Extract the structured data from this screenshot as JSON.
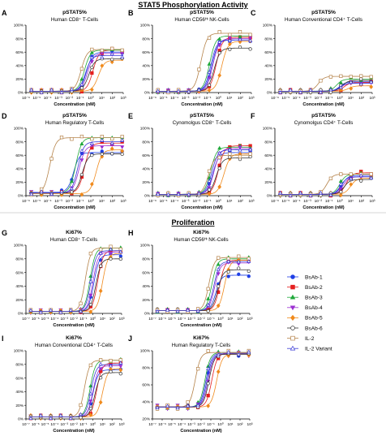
{
  "sections": {
    "stat5": "STAT5 Phosphorylation Activity",
    "prolif": "Proliferation"
  },
  "legend": [
    {
      "name": "BsAb-1",
      "color": "#1f3fe6",
      "marker": "circle",
      "filled": true
    },
    {
      "name": "BsAb-2",
      "color": "#e51e1e",
      "marker": "square",
      "filled": true
    },
    {
      "name": "BsAb-3",
      "color": "#1fa83a",
      "marker": "triangle",
      "filled": true
    },
    {
      "name": "BsAb-4",
      "color": "#9b2fd1",
      "marker": "triangle-down",
      "filled": true
    },
    {
      "name": "BsAb-5",
      "color": "#f08a1c",
      "marker": "diamond",
      "filled": true
    },
    {
      "name": "BsAb-6",
      "color": "#333333",
      "marker": "circle",
      "filled": false
    },
    {
      "name": "IL-2",
      "color": "#b5834a",
      "marker": "square",
      "filled": false
    },
    {
      "name": "IL-2 Variant",
      "color": "#3a3ad6",
      "marker": "triangle",
      "filled": false
    }
  ],
  "chart_data": [
    {
      "type": "scatter",
      "letter": "A",
      "title": "pSTAT5%",
      "subtitle": "Human CD8⁺ T-Cells",
      "xlabel": "Concentration (nM)",
      "xscale": "log",
      "xlim": [
        -6,
        3
      ],
      "ylim": [
        0,
        100
      ],
      "xticks": [
        "10⁻⁶",
        "10⁻⁵",
        "10⁻⁴",
        "10⁻³",
        "10⁻²",
        "10⁻¹",
        "10⁰",
        "10¹",
        "10²",
        "10³"
      ],
      "yticks": [
        "0%",
        "20%",
        "40%",
        "60%",
        "80%",
        "100%"
      ],
      "series": [
        {
          "name": "BsAb-1",
          "bottom": 2,
          "top": 60,
          "ec50_log10": -0.4
        },
        {
          "name": "BsAb-2",
          "bottom": 2,
          "top": 63,
          "ec50_log10": 0.2
        },
        {
          "name": "BsAb-3",
          "bottom": 2,
          "top": 63,
          "ec50_log10": -0.6
        },
        {
          "name": "BsAb-4",
          "bottom": 2,
          "top": 58,
          "ec50_log10": -0.3
        },
        {
          "name": "BsAb-5",
          "bottom": 2,
          "top": 48,
          "ec50_log10": 0.7
        },
        {
          "name": "BsAb-6",
          "bottom": 2,
          "top": 50,
          "ec50_log10": -0.2
        },
        {
          "name": "IL-2",
          "bottom": 2,
          "top": 64,
          "ec50_log10": -0.9
        },
        {
          "name": "IL-2 Variant",
          "bottom": 2,
          "top": 55,
          "ec50_log10": -0.5
        }
      ]
    },
    {
      "type": "scatter",
      "letter": "B",
      "title": "pSTAT5%",
      "subtitle": "Human CD56ᴴᶦ NK-Cells",
      "xlabel": "Concentration (nM)",
      "xscale": "log",
      "xlim": [
        -6,
        3
      ],
      "ylim": [
        0,
        100
      ],
      "xticks": [
        "10⁻⁶",
        "10⁻⁵",
        "10⁻⁴",
        "10⁻³",
        "10⁻²",
        "10⁻¹",
        "10⁰",
        "10¹",
        "10²",
        "10³"
      ],
      "yticks": [
        "0%",
        "20%",
        "40%",
        "60%",
        "80%",
        "100%"
      ],
      "series": [
        {
          "name": "BsAb-1",
          "bottom": 2,
          "top": 78,
          "ec50_log10": -0.6
        },
        {
          "name": "BsAb-2",
          "bottom": 2,
          "top": 82,
          "ec50_log10": -0.2
        },
        {
          "name": "BsAb-3",
          "bottom": 2,
          "top": 84,
          "ec50_log10": -0.8
        },
        {
          "name": "BsAb-4",
          "bottom": 2,
          "top": 80,
          "ec50_log10": -0.5
        },
        {
          "name": "BsAb-5",
          "bottom": 2,
          "top": 76,
          "ec50_log10": 0.3
        },
        {
          "name": "BsAb-6",
          "bottom": 2,
          "top": 66,
          "ec50_log10": -0.4
        },
        {
          "name": "IL-2",
          "bottom": 2,
          "top": 88,
          "ec50_log10": -1.6
        },
        {
          "name": "IL-2 Variant",
          "bottom": 2,
          "top": 78,
          "ec50_log10": -0.7
        }
      ]
    },
    {
      "type": "scatter",
      "letter": "C",
      "title": "pSTAT5%",
      "subtitle": "Human Conventional CD4⁺ T-Cells",
      "xlabel": "Concentration (nM)",
      "xscale": "log",
      "xlim": [
        -6,
        3
      ],
      "ylim": [
        0,
        100
      ],
      "xticks": [
        "10⁻⁶",
        "10⁻⁵",
        "10⁻⁴",
        "10⁻³",
        "10⁻²",
        "10⁻¹",
        "10⁰",
        "10¹",
        "10²",
        "10³"
      ],
      "yticks": [
        "0%",
        "20%",
        "40%",
        "60%",
        "80%",
        "100%"
      ],
      "series": [
        {
          "name": "BsAb-1",
          "bottom": 2,
          "top": 16,
          "ec50_log10": 0.0
        },
        {
          "name": "BsAb-2",
          "bottom": 2,
          "top": 15,
          "ec50_log10": 0.4
        },
        {
          "name": "BsAb-3",
          "bottom": 2,
          "top": 20,
          "ec50_log10": -0.3
        },
        {
          "name": "BsAb-4",
          "bottom": 2,
          "top": 14,
          "ec50_log10": 0.1
        },
        {
          "name": "BsAb-5",
          "bottom": 2,
          "top": 10,
          "ec50_log10": 0.8
        },
        {
          "name": "BsAb-6",
          "bottom": 2,
          "top": 18,
          "ec50_log10": 0.2
        },
        {
          "name": "IL-2",
          "bottom": 2,
          "top": 24,
          "ec50_log10": -2.0
        },
        {
          "name": "IL-2 Variant",
          "bottom": 2,
          "top": 14,
          "ec50_log10": 0.0
        }
      ]
    },
    {
      "type": "scatter",
      "letter": "D",
      "title": "pSTAT5%",
      "subtitle": "Human Regulatory T-Cells",
      "xlabel": "Concentration (nM)",
      "xscale": "log",
      "xlim": [
        -6,
        3
      ],
      "ylim": [
        0,
        100
      ],
      "xticks": [
        "10⁻⁶",
        "10⁻⁵",
        "10⁻⁴",
        "10⁻³",
        "10⁻²",
        "10⁻¹",
        "10⁰",
        "10¹",
        "10²",
        "10³"
      ],
      "yticks": [
        "0%",
        "20%",
        "40%",
        "60%",
        "80%",
        "100%"
      ],
      "series": [
        {
          "name": "BsAb-1",
          "bottom": 5,
          "top": 64,
          "ec50_log10": -1.6
        },
        {
          "name": "BsAb-2",
          "bottom": 4,
          "top": 78,
          "ec50_log10": -0.6
        },
        {
          "name": "BsAb-3",
          "bottom": 4,
          "top": 86,
          "ec50_log10": -1.4
        },
        {
          "name": "BsAb-4",
          "bottom": 4,
          "top": 74,
          "ec50_log10": -1.1
        },
        {
          "name": "BsAb-5",
          "bottom": 3,
          "top": 68,
          "ec50_log10": 0.5
        },
        {
          "name": "BsAb-6",
          "bottom": 4,
          "top": 62,
          "ec50_log10": -0.8
        },
        {
          "name": "IL-2",
          "bottom": 3,
          "top": 86,
          "ec50_log10": -3.8
        },
        {
          "name": "IL-2 Variant",
          "bottom": 4,
          "top": 80,
          "ec50_log10": -1.2
        }
      ]
    },
    {
      "type": "scatter",
      "letter": "E",
      "title": "pSTAT5%",
      "subtitle": "Cynomolgus CD8⁺ T-Cells",
      "xlabel": "Concentration (nM)",
      "xscale": "log",
      "xlim": [
        -6,
        3
      ],
      "ylim": [
        0,
        100
      ],
      "xticks": [
        "10⁻⁶",
        "10⁻⁵",
        "10⁻⁴",
        "10⁻³",
        "10⁻²",
        "10⁻¹",
        "10⁰",
        "10¹",
        "10²",
        "10³"
      ],
      "yticks": [
        "0%",
        "20%",
        "40%",
        "60%",
        "80%",
        "100%"
      ],
      "series": [
        {
          "name": "BsAb-1",
          "bottom": 2,
          "top": 64,
          "ec50_log10": -0.5
        },
        {
          "name": "BsAb-2",
          "bottom": 2,
          "top": 74,
          "ec50_log10": 0.0
        },
        {
          "name": "BsAb-3",
          "bottom": 2,
          "top": 72,
          "ec50_log10": -0.7
        },
        {
          "name": "BsAb-4",
          "bottom": 2,
          "top": 70,
          "ec50_log10": -0.4
        },
        {
          "name": "BsAb-5",
          "bottom": 2,
          "top": 62,
          "ec50_log10": 0.5
        },
        {
          "name": "BsAb-6",
          "bottom": 2,
          "top": 56,
          "ec50_log10": -0.2
        },
        {
          "name": "IL-2",
          "bottom": 2,
          "top": 60,
          "ec50_log10": -0.9
        },
        {
          "name": "IL-2 Variant",
          "bottom": 2,
          "top": 68,
          "ec50_log10": -0.6
        }
      ]
    },
    {
      "type": "scatter",
      "letter": "F",
      "title": "pSTAT5%",
      "subtitle": "Cynomolgus CD4⁺ T-Cells",
      "xlabel": "Concentration (nM)",
      "xscale": "log",
      "xlim": [
        -6,
        3
      ],
      "ylim": [
        0,
        100
      ],
      "xticks": [
        "10⁻⁶",
        "10⁻⁵",
        "10⁻⁴",
        "10⁻³",
        "10⁻²",
        "10⁻¹",
        "10⁰",
        "10¹",
        "10²",
        "10³"
      ],
      "yticks": [
        "0%",
        "20%",
        "40%",
        "60%",
        "80%",
        "100%"
      ],
      "series": [
        {
          "name": "BsAb-1",
          "bottom": 2,
          "top": 30,
          "ec50_log10": 0.2
        },
        {
          "name": "BsAb-2",
          "bottom": 2,
          "top": 34,
          "ec50_log10": 0.6
        },
        {
          "name": "BsAb-3",
          "bottom": 2,
          "top": 32,
          "ec50_log10": 0.0
        },
        {
          "name": "BsAb-4",
          "bottom": 2,
          "top": 28,
          "ec50_log10": 0.3
        },
        {
          "name": "BsAb-5",
          "bottom": 2,
          "top": 26,
          "ec50_log10": 1.0
        },
        {
          "name": "BsAb-6",
          "bottom": 2,
          "top": 24,
          "ec50_log10": 0.4
        },
        {
          "name": "IL-2",
          "bottom": 2,
          "top": 32,
          "ec50_log10": -1.2
        },
        {
          "name": "IL-2 Variant",
          "bottom": 2,
          "top": 28,
          "ec50_log10": 0.1
        }
      ]
    },
    {
      "type": "scatter",
      "letter": "G",
      "title": "Ki67%",
      "subtitle": "Human CD8⁺ T-Cells",
      "xlabel": "Concentration (nM)",
      "xscale": "log",
      "xlim": [
        -7,
        3
      ],
      "ylim": [
        0,
        100
      ],
      "xticks": [
        "10⁻⁷",
        "10⁻⁶",
        "10⁻⁵",
        "10⁻⁴",
        "10⁻³",
        "10⁻²",
        "10⁻¹",
        "10⁰",
        "10¹",
        "10²",
        "10³"
      ],
      "yticks": [
        "0%",
        "20%",
        "40%",
        "60%",
        "80%",
        "100%"
      ],
      "series": [
        {
          "name": "BsAb-1",
          "bottom": 3,
          "top": 86,
          "ec50_log10": 0.1
        },
        {
          "name": "BsAb-2",
          "bottom": 3,
          "top": 92,
          "ec50_log10": 0.5
        },
        {
          "name": "BsAb-3",
          "bottom": 3,
          "top": 96,
          "ec50_log10": -0.3
        },
        {
          "name": "BsAb-4",
          "bottom": 3,
          "top": 90,
          "ec50_log10": 0.0
        },
        {
          "name": "BsAb-5",
          "bottom": 3,
          "top": 88,
          "ec50_log10": 1.0
        },
        {
          "name": "BsAb-6",
          "bottom": 3,
          "top": 80,
          "ec50_log10": 0.3
        },
        {
          "name": "IL-2",
          "bottom": 3,
          "top": 96,
          "ec50_log10": -0.8
        },
        {
          "name": "IL-2 Variant",
          "bottom": 3,
          "top": 92,
          "ec50_log10": -0.2
        }
      ]
    },
    {
      "type": "scatter",
      "letter": "H",
      "title": "Ki67%",
      "subtitle": "Human CD56ᴴᶦ NK-Cells",
      "xlabel": "Concentration (nM)",
      "xscale": "log",
      "xlim": [
        -7,
        3
      ],
      "ylim": [
        0,
        100
      ],
      "xticks": [
        "10⁻⁷",
        "10⁻⁶",
        "10⁻⁵",
        "10⁻⁴",
        "10⁻³",
        "10⁻²",
        "10⁻¹",
        "10⁰",
        "10¹",
        "10²",
        "10³"
      ],
      "yticks": [
        "0%",
        "20%",
        "40%",
        "60%",
        "80%",
        "100%"
      ],
      "series": [
        {
          "name": "BsAb-1",
          "bottom": 4,
          "top": 56,
          "ec50_log10": -0.5
        },
        {
          "name": "BsAb-2",
          "bottom": 4,
          "top": 78,
          "ec50_log10": -0.1
        },
        {
          "name": "BsAb-3",
          "bottom": 4,
          "top": 80,
          "ec50_log10": -0.9
        },
        {
          "name": "BsAb-4",
          "bottom": 4,
          "top": 74,
          "ec50_log10": -0.6
        },
        {
          "name": "BsAb-5",
          "bottom": 4,
          "top": 78,
          "ec50_log10": 0.4
        },
        {
          "name": "BsAb-6",
          "bottom": 4,
          "top": 64,
          "ec50_log10": -0.3
        },
        {
          "name": "IL-2",
          "bottom": 4,
          "top": 82,
          "ec50_log10": -1.2
        },
        {
          "name": "IL-2 Variant",
          "bottom": 4,
          "top": 76,
          "ec50_log10": -0.7
        }
      ]
    },
    {
      "type": "scatter",
      "letter": "I",
      "title": "Ki67%",
      "subtitle": "Human Conventional CD4⁺ T-Cells",
      "xlabel": "Concentration (nM)",
      "xscale": "log",
      "xlim": [
        -7,
        3
      ],
      "ylim": [
        0,
        100
      ],
      "xticks": [
        "10⁻⁷",
        "10⁻⁶",
        "10⁻⁵",
        "10⁻⁴",
        "10⁻³",
        "10⁻²",
        "10⁻¹",
        "10⁰",
        "10¹",
        "10²",
        "10³"
      ],
      "yticks": [
        "0%",
        "20%",
        "40%",
        "60%",
        "80%",
        "100%"
      ],
      "series": [
        {
          "name": "BsAb-1",
          "bottom": 3,
          "top": 72,
          "ec50_log10": 0.0
        },
        {
          "name": "BsAb-2",
          "bottom": 3,
          "top": 82,
          "ec50_log10": 0.4
        },
        {
          "name": "BsAb-3",
          "bottom": 3,
          "top": 86,
          "ec50_log10": -0.3
        },
        {
          "name": "BsAb-4",
          "bottom": 3,
          "top": 78,
          "ec50_log10": 0.0
        },
        {
          "name": "BsAb-5",
          "bottom": 3,
          "top": 74,
          "ec50_log10": 1.0
        },
        {
          "name": "BsAb-6",
          "bottom": 3,
          "top": 68,
          "ec50_log10": 0.2
        },
        {
          "name": "IL-2",
          "bottom": 3,
          "top": 86,
          "ec50_log10": -0.9
        },
        {
          "name": "IL-2 Variant",
          "bottom": 3,
          "top": 80,
          "ec50_log10": -0.2
        }
      ]
    },
    {
      "type": "scatter",
      "letter": "J",
      "title": "Ki67%",
      "subtitle": "Human Regulatory T-Cells",
      "xlabel": "Concentration (nM)",
      "xscale": "log",
      "xlim": [
        -7,
        3
      ],
      "ylim": [
        20,
        100
      ],
      "xticks": [
        "10⁻⁷",
        "10⁻⁶",
        "10⁻⁵",
        "10⁻⁴",
        "10⁻³",
        "10⁻²",
        "10⁻¹",
        "10⁰",
        "10¹",
        "10²",
        "10³"
      ],
      "yticks": [
        "20%",
        "40%",
        "60%",
        "80%",
        "100%"
      ],
      "series": [
        {
          "name": "BsAb-1",
          "bottom": 34,
          "top": 96,
          "ec50_log10": -1.4
        },
        {
          "name": "BsAb-2",
          "bottom": 34,
          "top": 97,
          "ec50_log10": -0.9
        },
        {
          "name": "BsAb-3",
          "bottom": 34,
          "top": 98,
          "ec50_log10": -1.6
        },
        {
          "name": "BsAb-4",
          "bottom": 34,
          "top": 96,
          "ec50_log10": -1.3
        },
        {
          "name": "BsAb-5",
          "bottom": 34,
          "top": 96,
          "ec50_log10": -0.4
        },
        {
          "name": "BsAb-6",
          "bottom": 34,
          "top": 96,
          "ec50_log10": -1.2
        },
        {
          "name": "IL-2",
          "bottom": 34,
          "top": 98,
          "ec50_log10": -2.6
        },
        {
          "name": "IL-2 Variant",
          "bottom": 34,
          "top": 97,
          "ec50_log10": -1.5
        }
      ]
    }
  ]
}
